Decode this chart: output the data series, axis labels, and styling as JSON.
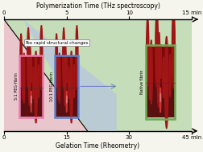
{
  "title_top": "Polymerization Time (THz spectroscopy)",
  "title_bottom": "Gelation Time (Rheometry)",
  "bg_color": "#f5f5ee",
  "green_color": "#c5ddb8",
  "pink_color": "#eec4ce",
  "blue_color": "#b8c4e0",
  "label_too_rapid": "Too rapid structural changes",
  "label_5to1": "5:1 PEG-fibrin",
  "label_10to1": "10:1 PEG-fibrin",
  "label_native": "Native fibrin",
  "box_5to1_color": "#e87aaa",
  "box_10to1_color": "#6080cc",
  "box_native_color": "#6aaa50",
  "micro_dark": "#7a0808",
  "micro_mid": "#a01515",
  "dish_bg": "#3a0505",
  "dish_circle": "#cc3535",
  "dish_highlight": "#f0a0a0",
  "arrow_color": "#6080cc"
}
